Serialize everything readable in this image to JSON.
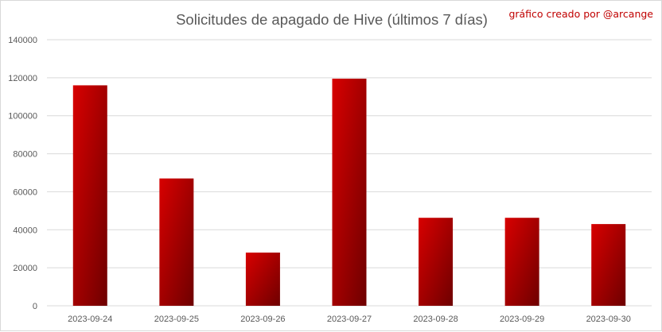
{
  "chart_data": {
    "type": "bar",
    "title": "Solicitudes de apagado de Hive (últimos 7 días)",
    "annotation": "gráfico creado por @arcange",
    "categories": [
      "2023-09-24",
      "2023-09-25",
      "2023-09-26",
      "2023-09-27",
      "2023-09-28",
      "2023-09-29",
      "2023-09-30"
    ],
    "values": [
      116000,
      67000,
      28000,
      119500,
      46300,
      46300,
      43000
    ],
    "ylim": [
      0,
      140000
    ],
    "yticks": [
      0,
      20000,
      40000,
      60000,
      80000,
      100000,
      120000,
      140000
    ],
    "ytick_labels": [
      "0",
      "20000",
      "40000",
      "60000",
      "80000",
      "100000",
      "120000",
      "140000"
    ],
    "grid": true,
    "legend": "none",
    "colors": {
      "bar_light": "#d80000",
      "bar_dark": "#6e0000",
      "grid": "#d9d9d9",
      "text": "#595959",
      "annotation": "#c00000"
    }
  }
}
